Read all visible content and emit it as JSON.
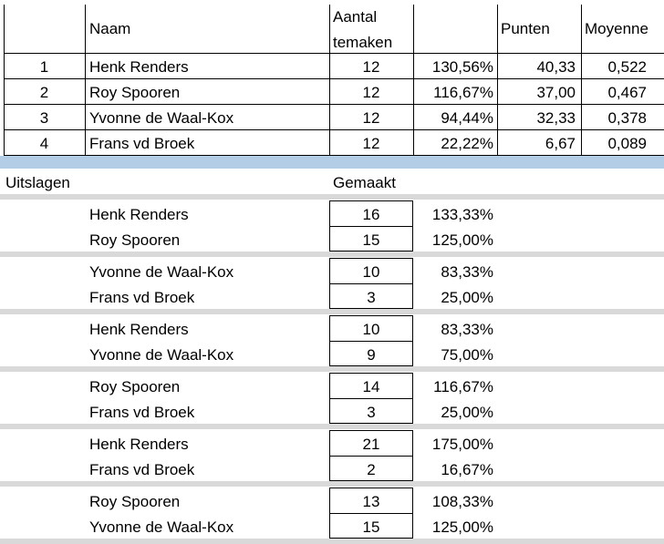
{
  "header": {
    "naam": "Naam",
    "aantal_line1": "Aantal",
    "aantal_line2": "temaken",
    "punten": "Punten",
    "moyenne": "Moyenne"
  },
  "ranking": [
    {
      "pos": "1",
      "naam": "Henk Renders",
      "aantal": "12",
      "pct": "130,56%",
      "punten": "40,33",
      "moyenne": "0,522"
    },
    {
      "pos": "2",
      "naam": "Roy Spooren",
      "aantal": "12",
      "pct": "116,67%",
      "punten": "37,00",
      "moyenne": "0,467"
    },
    {
      "pos": "3",
      "naam": "Yvonne de Waal-Kox",
      "aantal": "12",
      "pct": "94,44%",
      "punten": "32,33",
      "moyenne": "0,378"
    },
    {
      "pos": "4",
      "naam": "Frans vd Broek",
      "aantal": "12",
      "pct": "22,22%",
      "punten": "6,67",
      "moyenne": "0,089"
    }
  ],
  "results_header": {
    "uitslagen": "Uitslagen",
    "gemaakt": "Gemaakt"
  },
  "matches": [
    {
      "p1": "Henk Renders",
      "s1": "16",
      "pct1": "133,33%",
      "p2": "Roy Spooren",
      "s2": "15",
      "pct2": "125,00%"
    },
    {
      "p1": "Yvonne de Waal-Kox",
      "s1": "10",
      "pct1": "83,33%",
      "p2": "Frans vd Broek",
      "s2": "3",
      "pct2": "25,00%"
    },
    {
      "p1": "Henk Renders",
      "s1": "10",
      "pct1": "83,33%",
      "p2": "Yvonne de Waal-Kox",
      "s2": "9",
      "pct2": "75,00%"
    },
    {
      "p1": "Roy Spooren",
      "s1": "14",
      "pct1": "116,67%",
      "p2": "Frans vd Broek",
      "s2": "3",
      "pct2": "25,00%"
    },
    {
      "p1": "Henk Renders",
      "s1": "21",
      "pct1": "175,00%",
      "p2": "Frans vd Broek",
      "s2": "2",
      "pct2": "16,67%"
    },
    {
      "p1": "Roy Spooren",
      "s1": "13",
      "pct1": "108,33%",
      "p2": "Yvonne de Waal-Kox",
      "s2": "15",
      "pct2": "125,00%"
    }
  ],
  "colors": {
    "separator_blue": "#b4cde6",
    "separator_gray": "#d9d9d9"
  }
}
